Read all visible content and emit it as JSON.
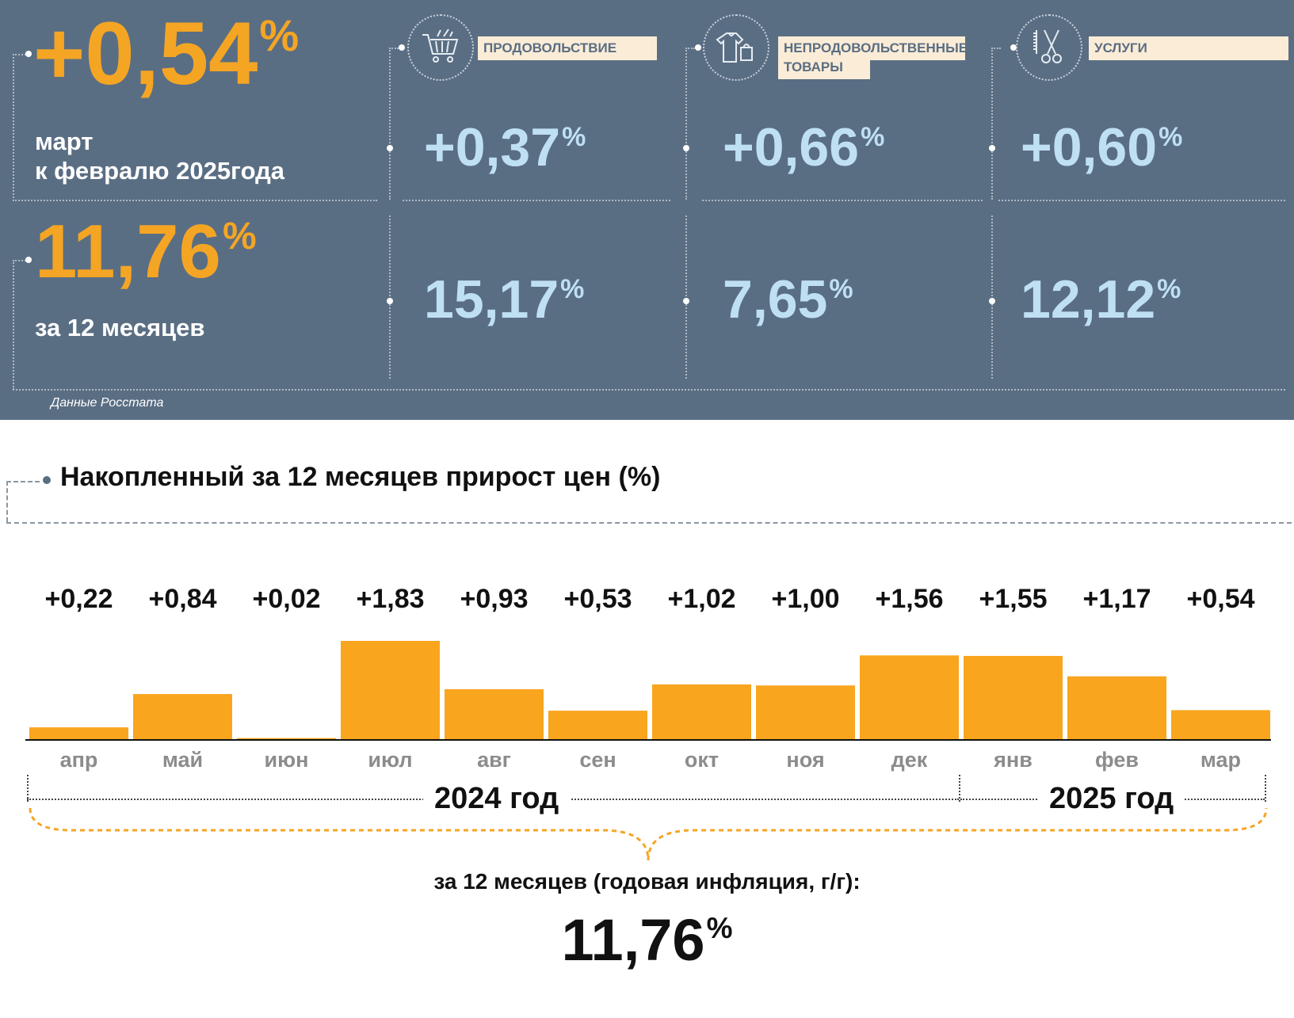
{
  "header": {
    "month_value": "+0,54",
    "month_label_line1": "март",
    "month_label_line2": "к февралю 2025года",
    "annual_value": "11,76",
    "annual_label": "за 12 месяцев",
    "percent_sign": "%",
    "source": "Данные Росстата"
  },
  "categories": [
    {
      "label": "ПРОДОВОЛЬСТВИЕ",
      "icon": "shopping-cart-icon",
      "monthly": "+0,37",
      "annual": "15,17"
    },
    {
      "label_line1": "НЕПРОДОВОЛЬСТВЕННЫЕ",
      "label_line2": "ТОВАРЫ",
      "icon": "clothing-bag-icon",
      "monthly": "+0,66",
      "annual": "7,65"
    },
    {
      "label": "УСЛУГИ",
      "icon": "scissors-comb-icon",
      "monthly": "+0,60",
      "annual": "12,12"
    }
  ],
  "colors": {
    "panel": "#5a6e83",
    "accent": "#f5a524",
    "value_blue": "#bfe0f2",
    "label_bg": "#fbecd7"
  },
  "section_title": "Накопленный за 12 месяцев прирост цен (%)",
  "chart_data": {
    "type": "bar",
    "title": "Накопленный за 12 месяцев прирост цен (%)",
    "categories": [
      "апр",
      "май",
      "июн",
      "июл",
      "авг",
      "сен",
      "окт",
      "ноя",
      "дек",
      "янв",
      "фев",
      "мар"
    ],
    "values": [
      0.22,
      0.84,
      0.02,
      1.83,
      0.93,
      0.53,
      1.02,
      1.0,
      1.56,
      1.55,
      1.17,
      0.54
    ],
    "data_labels": [
      "+0,22",
      "+0,84",
      "+0,02",
      "+1,83",
      "+0,93",
      "+0,53",
      "+1,02",
      "+1,00",
      "+1,56",
      "+1,55",
      "+1,17",
      "+0,54"
    ],
    "groups": [
      {
        "label": "2024 год",
        "from": "апр",
        "to": "дек"
      },
      {
        "label": "2025 год",
        "from": "янв",
        "to": "мар"
      }
    ],
    "ylim": [
      0,
      1.83
    ],
    "grid": false,
    "bar_color": "#f9a51e"
  },
  "footer": {
    "caption": "за 12 месяцев (годовая инфляция, г/г):",
    "total_value": "11,76",
    "percent_sign": "%"
  }
}
